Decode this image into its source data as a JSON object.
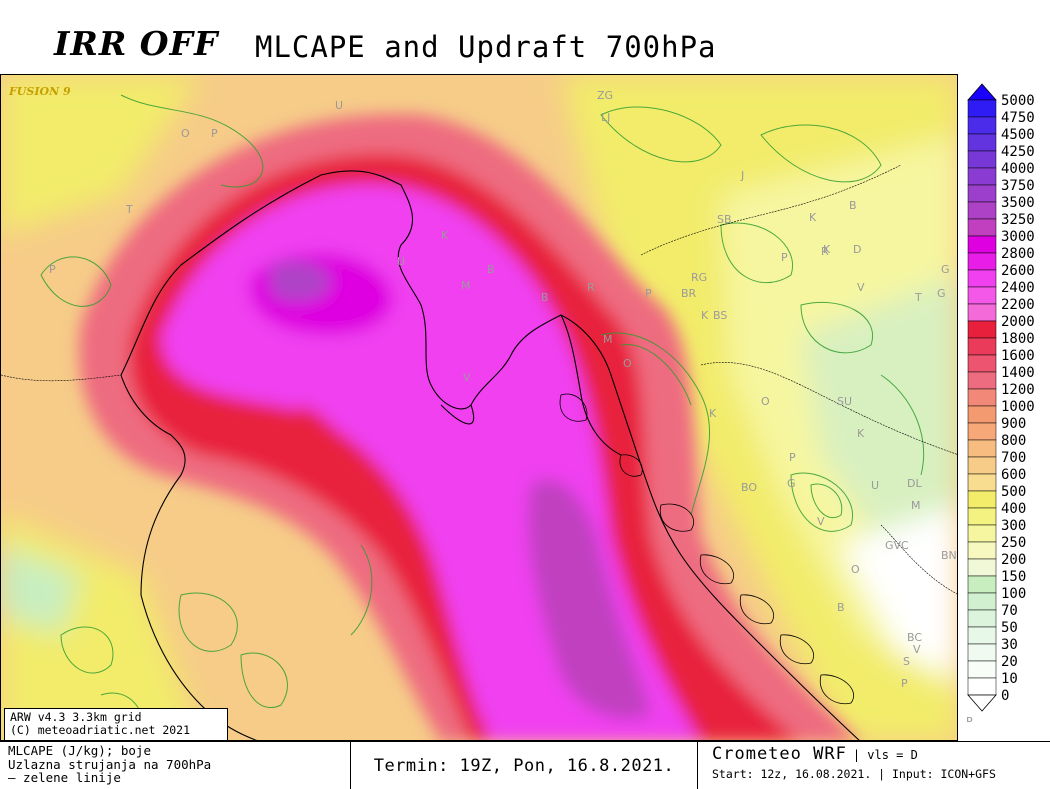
{
  "header": {
    "logo": "IRR OFF",
    "title": "MLCAPE and Updraft 700hPa"
  },
  "map": {
    "overlay_label": "FUSION 9",
    "place_labels": [
      "U",
      "LJ",
      "ZG",
      "O",
      "P",
      "T",
      "P",
      "K",
      "U",
      "M",
      "B",
      "RG",
      "BR",
      "B",
      "R",
      "P",
      "K",
      "BS",
      "J",
      "SB",
      "M",
      "V",
      "O",
      "K",
      "D",
      "R",
      "B",
      "K",
      "G",
      "V",
      "T",
      "G",
      "P",
      "K",
      "K",
      "O",
      "SU",
      "BO",
      "P",
      "G",
      "U",
      "DL",
      "M",
      "V",
      "GVC",
      "BN",
      "O",
      "B",
      "KO",
      "BC",
      "V",
      "S",
      "P"
    ]
  },
  "info_box": {
    "line1": "ARW v4.3 3.3km grid",
    "line2": "(C) meteoadriatic.net 2021"
  },
  "footer": {
    "legend_line1": "MLCAPE (J/kg); boje",
    "legend_line2": "Uzlazna strujanja na 700hPa",
    "legend_line3": "— zelene linije",
    "termin": "Termin: 19Z, Pon, 16.8.2021.",
    "model_name": "Crometeo WRF",
    "vls": "| vls = D",
    "start": "Start: 12z, 16.08.2021. | Input: ICON+GFS"
  },
  "colorbar": {
    "levels": [
      "5000",
      "4750",
      "4500",
      "4250",
      "4000",
      "3750",
      "3500",
      "3250",
      "3000",
      "2800",
      "2600",
      "2400",
      "2200",
      "2000",
      "1800",
      "1600",
      "1400",
      "1200",
      "1000",
      "900",
      "800",
      "700",
      "600",
      "500",
      "400",
      "300",
      "250",
      "200",
      "150",
      "100",
      "70",
      "50",
      "30",
      "20",
      "10",
      "0"
    ],
    "colors": [
      "#1a00ff",
      "#2f1cf5",
      "#4a2cea",
      "#6234e0",
      "#7838d8",
      "#8a3cd2",
      "#9c3fcc",
      "#ae42c6",
      "#c040c0",
      "#de00e0",
      "#e81ee8",
      "#f040f0",
      "#f458e8",
      "#f46ad8",
      "#e8203c",
      "#ea3c5a",
      "#ec5470",
      "#ee6c80",
      "#f28878",
      "#f49a70",
      "#f6a878",
      "#f6bc80",
      "#f6cc88",
      "#f8dc90",
      "#f2ec6a",
      "#f4f280",
      "#f6f6a0",
      "#f6f8c0",
      "#f0f8d8",
      "#c8eec0",
      "#d0f0d0",
      "#dcf4dc",
      "#e8f8e8",
      "#f0faf0",
      "#f8fdf8",
      "#ffffff"
    ],
    "bottom_label": "P"
  }
}
